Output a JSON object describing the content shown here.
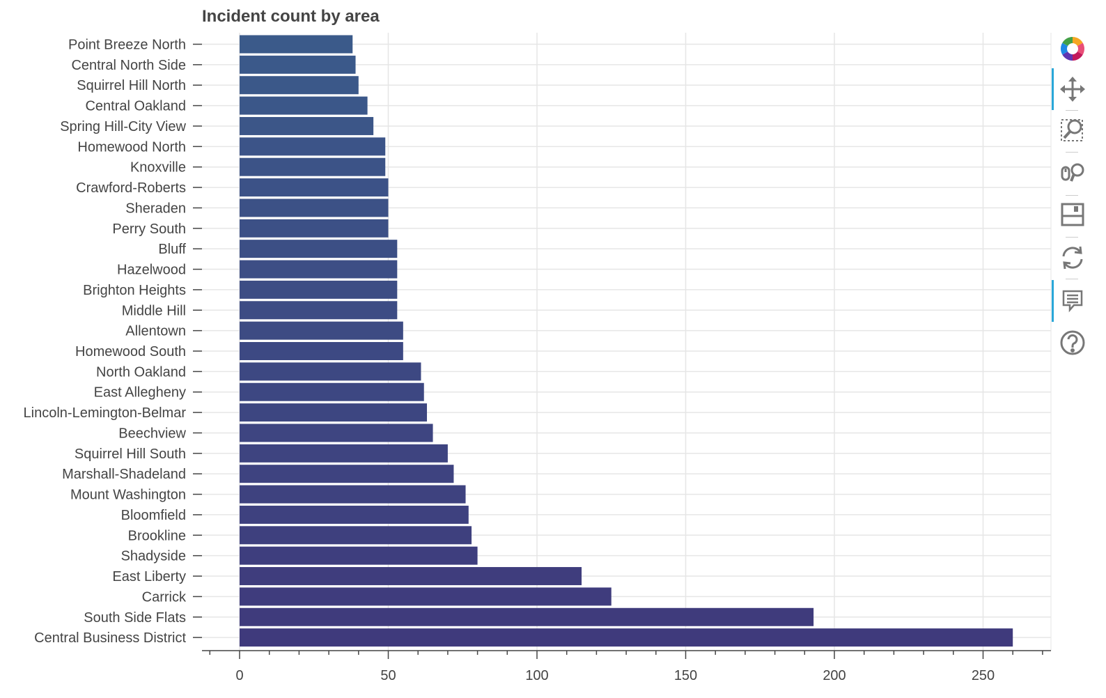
{
  "chart_data": {
    "type": "bar",
    "orientation": "horizontal",
    "title": "Incident count by area",
    "xlabel": "",
    "ylabel": "",
    "xlim": [
      -13,
      272
    ],
    "x_ticks": [
      0,
      50,
      100,
      150,
      200,
      250
    ],
    "grid": true,
    "categories": [
      "Point Breeze North",
      "Central North Side",
      "Squirrel Hill North",
      "Central Oakland",
      "Spring Hill-City View",
      "Homewood North",
      "Knoxville",
      "Crawford-Roberts",
      "Sheraden",
      "Perry South",
      "Bluff",
      "Hazelwood",
      "Brighton Heights",
      "Middle Hill",
      "Allentown",
      "Homewood South",
      "North Oakland",
      "East Allegheny",
      "Lincoln-Lemington-Belmar",
      "Beechview",
      "Squirrel Hill South",
      "Marshall-Shadeland",
      "Mount Washington",
      "Bloomfield",
      "Brookline",
      "Shadyside",
      "East Liberty",
      "Carrick",
      "South Side Flats",
      "Central Business District"
    ],
    "values": [
      38,
      39,
      40,
      43,
      45,
      49,
      49,
      50,
      50,
      50,
      53,
      53,
      53,
      53,
      55,
      55,
      61,
      62,
      63,
      65,
      70,
      72,
      76,
      77,
      78,
      80,
      115,
      125,
      193,
      260
    ],
    "colors": {
      "bar_top": "#3b5a8a",
      "bar_bottom": "#3f3a7c",
      "grid": "#e6e6e6",
      "axis": "#444444",
      "text": "#444444"
    }
  },
  "toolbar": {
    "tools": [
      {
        "icon": "bokeh-logo-icon"
      },
      {
        "icon": "pan-icon"
      },
      {
        "icon": "box-zoom-icon"
      },
      {
        "icon": "wheel-zoom-icon"
      },
      {
        "icon": "save-icon"
      },
      {
        "icon": "reset-icon"
      },
      {
        "icon": "hover-icon"
      },
      {
        "icon": "help-icon"
      }
    ]
  }
}
